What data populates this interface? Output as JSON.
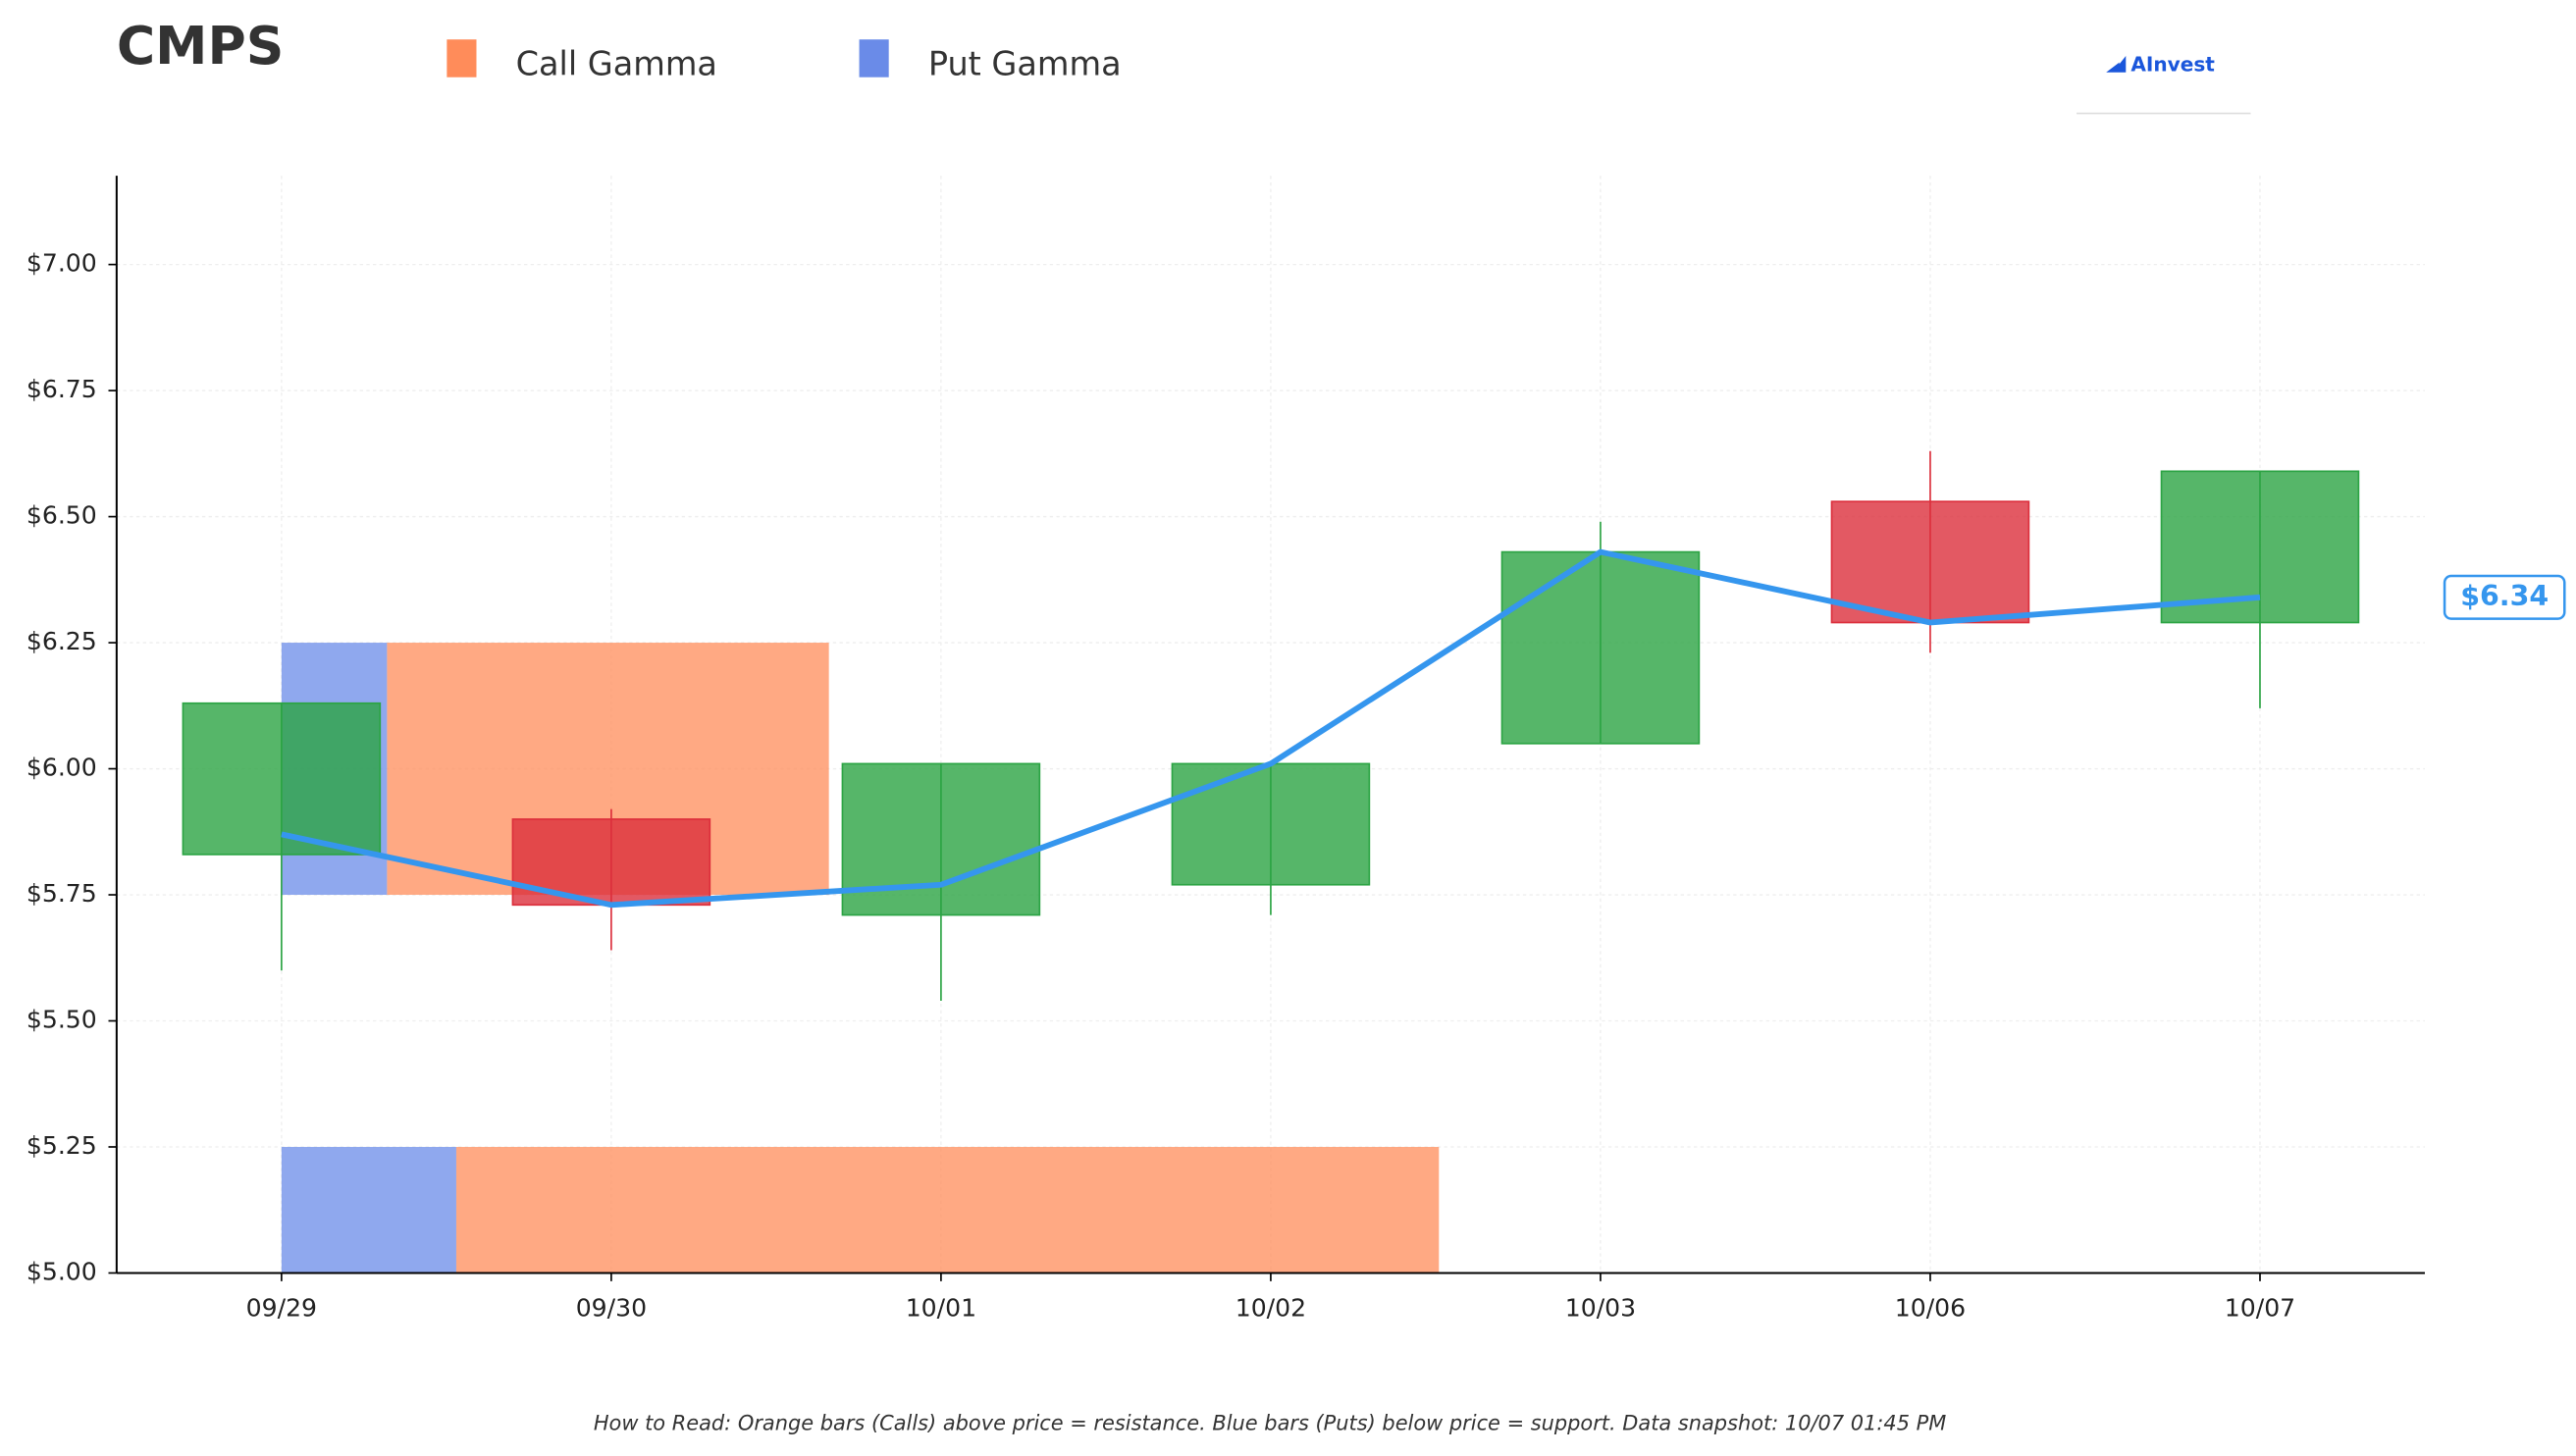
{
  "chart_data": {
    "type": "candlestick",
    "title": "CMPS",
    "categories": [
      "09/29",
      "09/30",
      "10/01",
      "10/02",
      "10/03",
      "10/06",
      "10/07"
    ],
    "open": [
      5.83,
      5.9,
      5.71,
      5.77,
      6.05,
      6.53,
      6.29
    ],
    "close": [
      6.13,
      5.73,
      6.01,
      6.01,
      6.43,
      6.29,
      6.59
    ],
    "high": [
      6.13,
      5.92,
      6.01,
      6.01,
      6.49,
      6.63,
      6.59
    ],
    "low": [
      5.6,
      5.64,
      5.54,
      5.71,
      6.05,
      6.23,
      6.12
    ],
    "line_values": [
      5.87,
      5.73,
      5.77,
      6.01,
      6.43,
      6.29,
      6.34
    ],
    "up_color": "#2ca444",
    "down_color": "#dc2f3c",
    "line_color": "#3596ee",
    "last_price": {
      "value": 6.34,
      "label": "$6.34"
    },
    "gamma_series": [
      {
        "name": "Call Gamma",
        "color": "#ff8c5a"
      },
      {
        "name": "Put Gamma",
        "color": "#6a8be8"
      }
    ],
    "gamma_levels": [
      {
        "strike": 6.0,
        "call": 1.34,
        "put": 0.32
      },
      {
        "strike": 5.0,
        "call": 2.98,
        "put": 0.53
      }
    ],
    "ylim": [
      5.0,
      7.176
    ],
    "yticks": [
      {
        "value": 5.0,
        "label": "$5.00"
      },
      {
        "value": 5.25,
        "label": "$5.25"
      },
      {
        "value": 5.5,
        "label": "$5.50"
      },
      {
        "value": 5.75,
        "label": "$5.75"
      },
      {
        "value": 6.0,
        "label": "$6.00"
      },
      {
        "value": 6.25,
        "label": "$6.25"
      },
      {
        "value": 6.5,
        "label": "$6.50"
      },
      {
        "value": 6.75,
        "label": "$6.75"
      },
      {
        "value": 7.0,
        "label": "$7.00"
      }
    ],
    "grid": true,
    "logo": "AInvest",
    "footnote": "How to Read: Orange bars (Calls) above price = resistance. Blue bars (Puts) below price = support. Data snapshot: 10/07 01:45 PM"
  }
}
